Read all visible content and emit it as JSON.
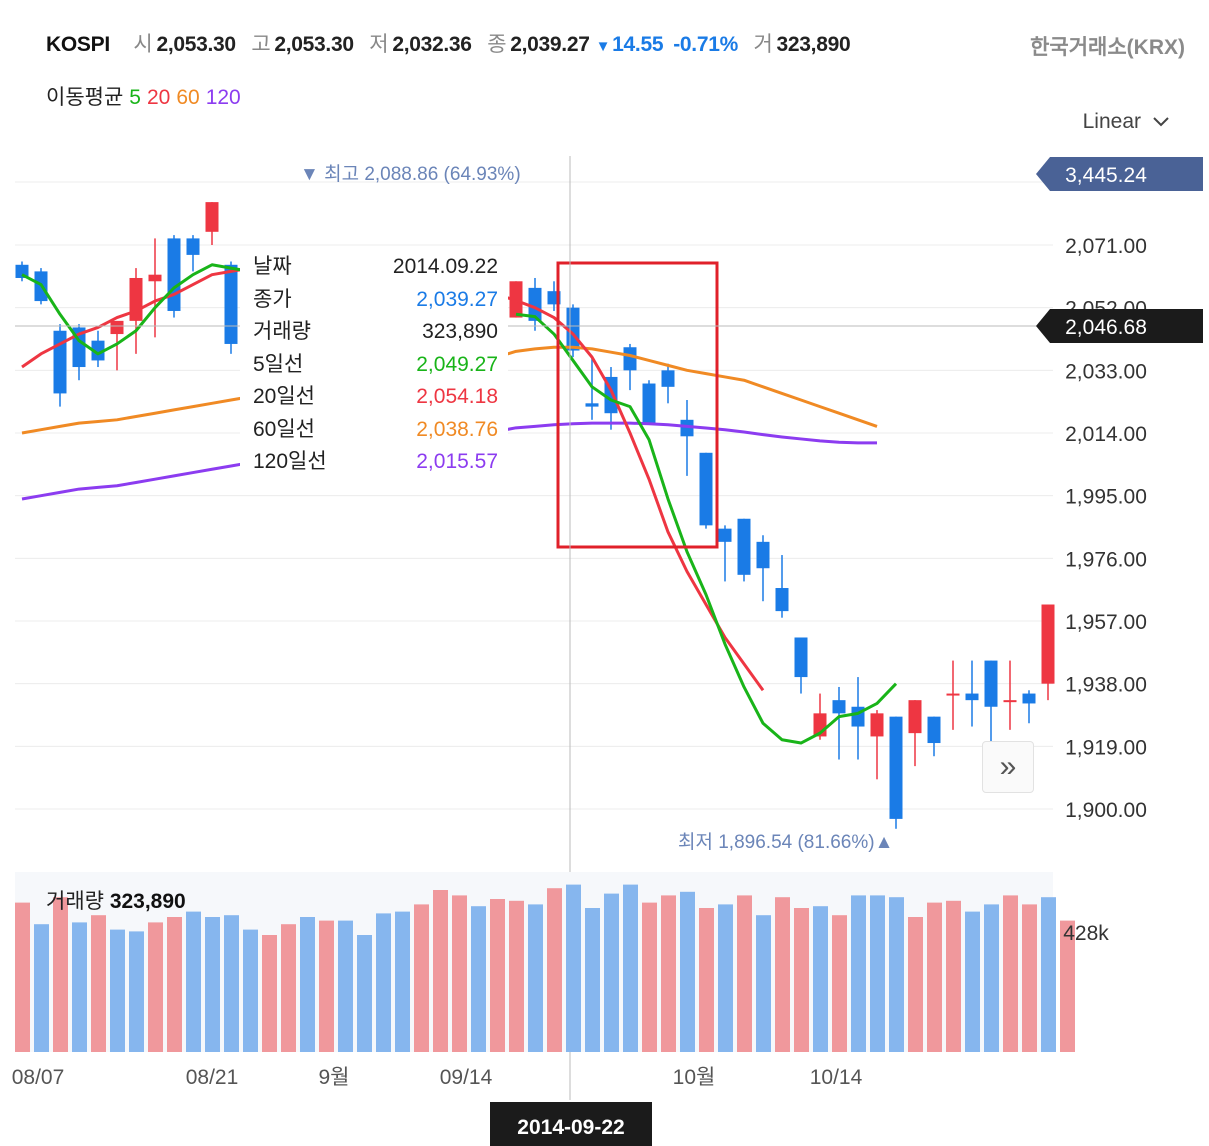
{
  "header": {
    "symbol": "KOSPI",
    "open_label": "시",
    "open": "2,053.30",
    "high_label": "고",
    "high": "2,053.30",
    "low_label": "저",
    "low": "2,032.36",
    "close_label": "종",
    "close": "2,039.27",
    "change_arrow": "▼",
    "change": "14.55",
    "change_pct": "-0.71%",
    "volume_label": "거",
    "volume": "323,890",
    "exchange": "한국거래소(KRX)"
  },
  "ma_legend": {
    "label": "이동평균",
    "items": [
      {
        "text": "5",
        "color": "#19b419"
      },
      {
        "text": "20",
        "color": "#ee3642"
      },
      {
        "text": "60",
        "color": "#f08a24"
      },
      {
        "text": "120",
        "color": "#8c3cf0"
      }
    ]
  },
  "scale_mode": "Linear",
  "tooltip": {
    "date_label": "날짜",
    "date": "2014.09.22",
    "close_label": "종가",
    "close": "2,039.27",
    "volume_label": "거래량",
    "volume": "323,890",
    "ma5_label": "5일선",
    "ma5": "2,049.27",
    "ma20_label": "20일선",
    "ma20": "2,054.18",
    "ma60_label": "60일선",
    "ma60": "2,038.76",
    "ma120_label": "120일선",
    "ma120": "2,015.57"
  },
  "volume_panel": {
    "label": "거래량",
    "value": "323,890",
    "axis_label": "428k"
  },
  "price_tags": {
    "top": "3,445.24",
    "current": "2,046.68"
  },
  "annotations": {
    "max": {
      "arrow": "▼",
      "label": "최고",
      "value": "2,088.86 (64.93%)"
    },
    "min": {
      "arrow": "▲",
      "label": "최저",
      "value": "1,896.54 (81.66%)"
    }
  },
  "crosshair_date": "2014-09-22",
  "colors": {
    "up": "#ee3642",
    "down": "#1a7be6",
    "ma5": "#19b419",
    "ma20": "#ee3642",
    "ma60": "#f08a24",
    "ma120": "#8c3cf0",
    "highlight_box": "#e0202a"
  },
  "chart_data": {
    "type": "candlestick",
    "y_ticks": [
      "2,071.00",
      "2,052.00",
      "2,033.00",
      "2,014.00",
      "1,995.00",
      "1,976.00",
      "1,957.00",
      "1,938.00",
      "1,919.00",
      "1,900.00"
    ],
    "y_tick_values": [
      2071,
      2052,
      2033,
      2014,
      1995,
      1976,
      1957,
      1938,
      1919,
      1900
    ],
    "ylim": [
      1900,
      2071
    ],
    "x_ticks": [
      "08/07",
      "08/21",
      "9월",
      "09/14",
      "10월",
      "10/14"
    ],
    "x_tick_index": [
      0,
      10,
      17,
      24,
      36,
      43
    ],
    "candles": [
      [
        2065,
        2061,
        2066,
        2060
      ],
      [
        2063,
        2054,
        2064,
        2053
      ],
      [
        2045,
        2026,
        2047,
        2022
      ],
      [
        2046,
        2034,
        2047,
        2030
      ],
      [
        2042,
        2036,
        2045,
        2034
      ],
      [
        2044,
        2048,
        2047,
        2033
      ],
      [
        2048,
        2061,
        2064,
        2038
      ],
      [
        2060,
        2062,
        2073,
        2043
      ],
      [
        2073,
        2051,
        2074,
        2049
      ],
      [
        2073,
        2068,
        2074,
        2063
      ],
      [
        2075,
        2084,
        2084,
        2071
      ],
      [
        2065,
        2041,
        2066,
        2038
      ],
      [
        2046,
        2054,
        2055,
        2045
      ]
    ],
    "candles_right": [
      [
        2049,
        2060,
        2060,
        2049
      ],
      [
        2058,
        2048,
        2061,
        2045
      ],
      [
        2057,
        2053,
        2060,
        2051
      ],
      [
        2052,
        2039,
        2053,
        2037
      ],
      [
        2023,
        2022,
        2037,
        2018
      ],
      [
        2031,
        2020,
        2034,
        2015
      ],
      [
        2040,
        2033,
        2041,
        2027
      ],
      [
        2029,
        2017,
        2030,
        2017
      ],
      [
        2033,
        2028,
        2035,
        2023
      ],
      [
        2018,
        2013,
        2024,
        2001
      ],
      [
        2008,
        1986,
        2008,
        1985
      ],
      [
        1985,
        1981,
        1986,
        1969
      ],
      [
        1988,
        1971,
        1988,
        1969
      ],
      [
        1981,
        1973,
        1983,
        1963
      ],
      [
        1967,
        1960,
        1977,
        1958
      ],
      [
        1952,
        1940,
        1952,
        1935
      ],
      [
        1922,
        1929,
        1935,
        1921
      ],
      [
        1933,
        1929,
        1937,
        1915
      ],
      [
        1931,
        1925,
        1940,
        1915
      ],
      [
        1922,
        1929,
        1930,
        1909
      ],
      [
        1928,
        1897,
        1928,
        1894
      ],
      [
        1923,
        1933,
        1933,
        1913
      ],
      [
        1928,
        1920,
        1928,
        1916
      ],
      [
        1935,
        1935,
        1945,
        1924
      ],
      [
        1935,
        1933,
        1945,
        1925
      ],
      [
        1945,
        1931,
        1945,
        1920
      ],
      [
        1933,
        1933,
        1945,
        1924
      ],
      [
        1935,
        1932,
        1936,
        1926
      ],
      [
        1938,
        1962,
        1962,
        1933
      ]
    ],
    "ma5": [
      2062,
      2059,
      2050,
      2042,
      2038,
      2041,
      2045,
      2052,
      2058,
      2062,
      2065,
      2064,
      2063,
      null,
      null,
      null,
      null,
      null,
      null,
      null,
      null,
      null,
      null,
      null,
      null,
      null,
      2050,
      2049.27,
      2044,
      2036,
      2028,
      2024,
      2022,
      2012,
      1994,
      1978,
      1965,
      1950,
      1937,
      1926,
      1921,
      1920,
      1923,
      1928,
      1929,
      1932,
      1938
    ],
    "ma20": [
      2034,
      2038,
      2041,
      2044,
      2046,
      2049,
      2051,
      2054,
      2056,
      2059,
      2062,
      2063,
      2064,
      null,
      null,
      null,
      null,
      null,
      null,
      null,
      null,
      null,
      null,
      null,
      2058,
      2056,
      2054.18,
      2052,
      2049,
      2044,
      2037,
      2027,
      2014,
      2000,
      1984,
      1972,
      1962,
      1952,
      1944,
      1936
    ],
    "ma60": [
      2014,
      2015,
      2016,
      2017,
      2017.5,
      2018,
      2019,
      2020,
      2021,
      2022,
      2023,
      2024,
      2025,
      null,
      null,
      null,
      null,
      null,
      null,
      null,
      null,
      null,
      null,
      null,
      2036,
      2037,
      2038.76,
      2039.5,
      2040,
      2040,
      2039.5,
      2038.5,
      2037.5,
      2036,
      2034.5,
      2033,
      2032,
      2031,
      2030,
      2028,
      2026,
      2024,
      2022,
      2020,
      2018,
      2016
    ],
    "ma120": [
      1994,
      1995,
      1996,
      1997,
      1997.5,
      1998,
      1999,
      2000,
      2001,
      2002,
      2003,
      2004,
      2005,
      null,
      null,
      null,
      null,
      null,
      null,
      null,
      null,
      null,
      null,
      null,
      2013,
      2014.5,
      2015.57,
      2016,
      2016.5,
      2016.8,
      2017,
      2017,
      2017,
      2016.8,
      2016.5,
      2016,
      2015.5,
      2015,
      2014.3,
      2013.5,
      2012.8,
      2012.2,
      2011.6,
      2011.2,
      2011,
      2011
    ],
    "volume_up": [
      1,
      0,
      1,
      0,
      1,
      0,
      0,
      1,
      1,
      0,
      0,
      0,
      0,
      1,
      1,
      0,
      1,
      0,
      0,
      0,
      0,
      1,
      1,
      1,
      0,
      1,
      1,
      0,
      1,
      0,
      0,
      0,
      0,
      1,
      1,
      0,
      1,
      0,
      1,
      0,
      1,
      1,
      0,
      1,
      0,
      0,
      0,
      1,
      1,
      1,
      0,
      0,
      1,
      1,
      0
    ],
    "volume_ratio": [
      0.83,
      0.71,
      0.86,
      0.72,
      0.76,
      0.68,
      0.67,
      0.72,
      0.75,
      0.78,
      0.75,
      0.76,
      0.68,
      0.65,
      0.71,
      0.75,
      0.73,
      0.73,
      0.65,
      0.77,
      0.78,
      0.82,
      0.9,
      0.87,
      0.81,
      0.85,
      0.84,
      0.82,
      0.91,
      0.93,
      0.8,
      0.88,
      0.93,
      0.83,
      0.87,
      0.89,
      0.8,
      0.82,
      0.87,
      0.76,
      0.86,
      0.8,
      0.81,
      0.76,
      0.87,
      0.87,
      0.86,
      0.75,
      0.83,
      0.84,
      0.78,
      0.82,
      0.87,
      0.82,
      0.86,
      0.73
    ]
  }
}
